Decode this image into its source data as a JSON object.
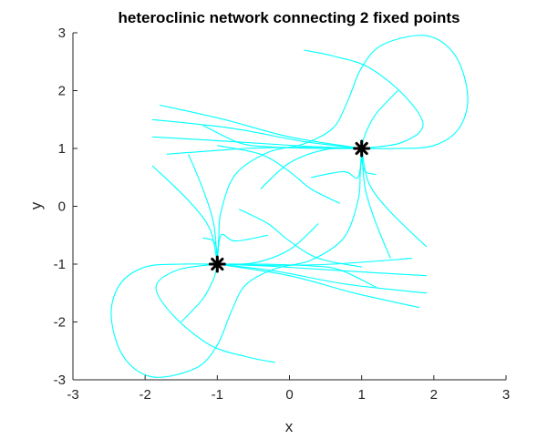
{
  "chart_data": {
    "type": "line",
    "title": "heteroclinic network connecting 2 fixed points",
    "xlabel": "x",
    "ylabel": "y",
    "xlim": [
      -3,
      3
    ],
    "ylim": [
      -3,
      3
    ],
    "xticks": [
      "-3",
      "-2",
      "-1",
      "0",
      "1",
      "2",
      "3"
    ],
    "yticks": [
      "3",
      "2",
      "1",
      "0",
      "-1",
      "-2",
      "-3"
    ],
    "grid": false,
    "legend": "none",
    "colors": {
      "trajectory": "#00ffff",
      "fixed_point": "#000000",
      "axes": "#262626"
    },
    "fixed_points": [
      {
        "x": 1,
        "y": 1
      },
      {
        "x": -1,
        "y": -1
      }
    ],
    "trajectories": [
      {
        "points": [
          [
            1,
            1
          ],
          [
            1.5,
            1
          ],
          [
            2,
            1.05
          ],
          [
            2.35,
            1.35
          ],
          [
            2.47,
            1.9
          ],
          [
            2.3,
            2.6
          ],
          [
            1.9,
            2.95
          ],
          [
            1.3,
            2.8
          ],
          [
            1,
            2.4
          ],
          [
            0.8,
            1.8
          ],
          [
            0.6,
            1.35
          ],
          [
            0.2,
            1.08
          ],
          [
            -0.3,
            0.93
          ],
          [
            -0.75,
            0.55
          ],
          [
            -0.95,
            -0.1
          ],
          [
            -0.98,
            -0.55
          ],
          [
            -1,
            -1
          ]
        ]
      },
      {
        "points": [
          [
            -1,
            -1
          ],
          [
            -1.5,
            -1
          ],
          [
            -2,
            -1.05
          ],
          [
            -2.35,
            -1.35
          ],
          [
            -2.47,
            -1.9
          ],
          [
            -2.3,
            -2.6
          ],
          [
            -1.9,
            -2.95
          ],
          [
            -1.3,
            -2.8
          ],
          [
            -1,
            -2.4
          ],
          [
            -0.8,
            -1.8
          ],
          [
            -0.6,
            -1.35
          ],
          [
            -0.2,
            -1.08
          ],
          [
            0.3,
            -0.93
          ],
          [
            0.75,
            -0.55
          ],
          [
            0.95,
            0.1
          ],
          [
            0.98,
            0.55
          ],
          [
            1,
            1
          ]
        ]
      },
      {
        "points": [
          [
            1,
            1
          ],
          [
            1.55,
            1.1
          ],
          [
            1.85,
            1.4
          ],
          [
            1.6,
            1.9
          ],
          [
            1.1,
            2.4
          ],
          [
            0.6,
            2.6
          ],
          [
            0.2,
            2.7
          ]
        ]
      },
      {
        "points": [
          [
            -1,
            -1
          ],
          [
            -1.55,
            -1.1
          ],
          [
            -1.85,
            -1.4
          ],
          [
            -1.6,
            -1.9
          ],
          [
            -1.1,
            -2.4
          ],
          [
            -0.6,
            -2.6
          ],
          [
            -0.2,
            -2.7
          ]
        ]
      },
      {
        "points": [
          [
            -1.9,
            1.5
          ],
          [
            -0.8,
            1.35
          ],
          [
            0.2,
            1.12
          ],
          [
            1,
            1
          ]
        ]
      },
      {
        "points": [
          [
            -1.9,
            1.2
          ],
          [
            -0.8,
            1.12
          ],
          [
            0.2,
            1.04
          ],
          [
            1,
            1
          ]
        ]
      },
      {
        "points": [
          [
            -1.7,
            0.9
          ],
          [
            -0.6,
            1.0
          ],
          [
            0.3,
            1.02
          ],
          [
            1,
            1
          ]
        ]
      },
      {
        "points": [
          [
            -1.8,
            1.75
          ],
          [
            -0.9,
            1.5
          ],
          [
            0,
            1.2
          ],
          [
            1,
            1
          ]
        ]
      },
      {
        "points": [
          [
            -0.4,
            0.3
          ],
          [
            0,
            0.75
          ],
          [
            0.5,
            0.98
          ],
          [
            1,
            1
          ]
        ]
      },
      {
        "points": [
          [
            -1.2,
            1.4
          ],
          [
            -0.7,
            1.1
          ],
          [
            -0.3,
            1.03
          ],
          [
            0.4,
            1.0
          ],
          [
            1,
            1
          ]
        ]
      },
      {
        "points": [
          [
            1.9,
            -1.5
          ],
          [
            0.8,
            -1.35
          ],
          [
            -0.2,
            -1.12
          ],
          [
            -1,
            -1
          ]
        ]
      },
      {
        "points": [
          [
            1.9,
            -1.2
          ],
          [
            0.8,
            -1.12
          ],
          [
            -0.2,
            -1.04
          ],
          [
            -1,
            -1
          ]
        ]
      },
      {
        "points": [
          [
            1.7,
            -0.9
          ],
          [
            0.6,
            -1.0
          ],
          [
            -0.3,
            -1.02
          ],
          [
            -1,
            -1
          ]
        ]
      },
      {
        "points": [
          [
            1.8,
            -1.75
          ],
          [
            0.9,
            -1.5
          ],
          [
            0,
            -1.2
          ],
          [
            -1,
            -1
          ]
        ]
      },
      {
        "points": [
          [
            0.4,
            -0.3
          ],
          [
            0,
            -0.75
          ],
          [
            -0.5,
            -0.98
          ],
          [
            -1,
            -1
          ]
        ]
      },
      {
        "points": [
          [
            1.2,
            -1.4
          ],
          [
            0.7,
            -1.1
          ],
          [
            0.3,
            -1.03
          ],
          [
            -0.4,
            -1.0
          ],
          [
            -1,
            -1
          ]
        ]
      },
      {
        "points": [
          [
            1.9,
            -0.7
          ],
          [
            1.4,
            -0.1
          ],
          [
            1.1,
            0.4
          ],
          [
            1,
            1
          ]
        ]
      },
      {
        "points": [
          [
            1.4,
            -0.9
          ],
          [
            1.2,
            -0.3
          ],
          [
            1.05,
            0.3
          ],
          [
            1,
            1
          ]
        ]
      },
      {
        "points": [
          [
            0.3,
            0.5
          ],
          [
            0.75,
            0.6
          ],
          [
            0.95,
            0.5
          ],
          [
            1,
            1
          ]
        ]
      },
      {
        "points": [
          [
            1.2,
            0.55
          ],
          [
            1.05,
            0.6
          ],
          [
            1,
            0.8
          ],
          [
            1,
            1
          ]
        ]
      },
      {
        "points": [
          [
            -1.9,
            0.7
          ],
          [
            -1.4,
            0.1
          ],
          [
            -1.1,
            -0.4
          ],
          [
            -1,
            -1
          ]
        ]
      },
      {
        "points": [
          [
            -1.4,
            0.9
          ],
          [
            -1.2,
            0.3
          ],
          [
            -1.05,
            -0.3
          ],
          [
            -1,
            -1
          ]
        ]
      },
      {
        "points": [
          [
            -0.3,
            -0.5
          ],
          [
            -0.75,
            -0.6
          ],
          [
            -0.95,
            -0.5
          ],
          [
            -1,
            -1
          ]
        ]
      },
      {
        "points": [
          [
            -1.2,
            -0.55
          ],
          [
            -1.05,
            -0.6
          ],
          [
            -1,
            -0.8
          ],
          [
            -1,
            -1
          ]
        ]
      },
      {
        "points": [
          [
            1.5,
            2.0
          ],
          [
            1.2,
            1.6
          ],
          [
            1.05,
            1.25
          ],
          [
            1,
            1
          ]
        ]
      },
      {
        "points": [
          [
            -1.5,
            -2.0
          ],
          [
            -1.2,
            -1.6
          ],
          [
            -1.05,
            -1.25
          ],
          [
            -1,
            -1
          ]
        ]
      },
      {
        "points": [
          [
            -0.7,
            -0.05
          ],
          [
            -0.3,
            -0.3
          ],
          [
            0.0,
            -0.6
          ],
          [
            0.4,
            -0.9
          ],
          [
            1.0,
            -1.05
          ]
        ]
      },
      {
        "points": [
          [
            0.7,
            0.05
          ],
          [
            0.3,
            0.3
          ],
          [
            0.0,
            0.6
          ],
          [
            -0.4,
            0.9
          ],
          [
            -1.0,
            1.05
          ]
        ]
      }
    ]
  }
}
